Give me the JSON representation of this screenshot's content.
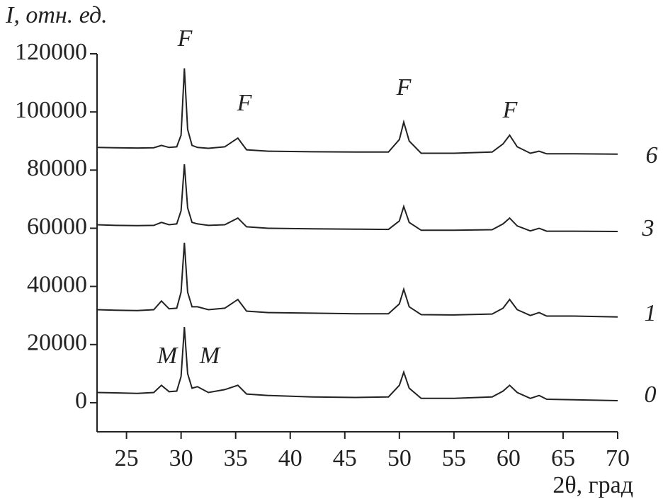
{
  "chart_data": {
    "type": "line",
    "y_label": "I, отн. ед.",
    "x_label": "2θ, град",
    "x": [
      22.3,
      24,
      26,
      27.5,
      28.2,
      28.9,
      29.6,
      30.0,
      30.3,
      30.6,
      31.0,
      31.5,
      32.5,
      34,
      35.2,
      36,
      38,
      42,
      46,
      49,
      50.0,
      50.4,
      50.9,
      52,
      55,
      58.5,
      59.5,
      60.1,
      60.8,
      62,
      62.8,
      63.5,
      66,
      70
    ],
    "series": [
      {
        "name": "0",
        "color": "#222222",
        "values": [
          3500,
          3400,
          3200,
          3500,
          6000,
          3800,
          4000,
          9000,
          26000,
          10000,
          5000,
          5500,
          3500,
          4500,
          6000,
          3000,
          2500,
          2000,
          1800,
          2000,
          6000,
          10500,
          5000,
          1500,
          1500,
          2000,
          4000,
          6000,
          3500,
          1500,
          2500,
          1200,
          1000,
          700
        ]
      },
      {
        "name": "1",
        "color": "#222222",
        "values": [
          32000,
          31800,
          31700,
          32000,
          35000,
          32300,
          32500,
          38000,
          55000,
          38000,
          33000,
          33000,
          32000,
          32500,
          35500,
          31500,
          31000,
          30800,
          30600,
          30600,
          34000,
          39000,
          33000,
          30300,
          30200,
          30500,
          32500,
          35500,
          32000,
          30000,
          31000,
          29800,
          29800,
          29500
        ]
      },
      {
        "name": "3",
        "color": "#222222",
        "values": [
          61200,
          61000,
          60900,
          61000,
          62000,
          61200,
          61500,
          66000,
          82000,
          67000,
          62000,
          61500,
          61000,
          61200,
          63500,
          60500,
          60000,
          59800,
          59700,
          59600,
          62500,
          67500,
          62000,
          59300,
          59300,
          59500,
          61500,
          63500,
          60800,
          59100,
          60000,
          59000,
          59000,
          58900
        ]
      },
      {
        "name": "6",
        "color": "#222222",
        "values": [
          87800,
          87700,
          87600,
          87700,
          88500,
          87800,
          88000,
          92000,
          115000,
          94000,
          88500,
          87800,
          87500,
          88000,
          91000,
          87000,
          86500,
          86300,
          86200,
          86200,
          90500,
          96500,
          90000,
          85800,
          85800,
          86200,
          89000,
          92000,
          88000,
          85800,
          86500,
          85600,
          85600,
          85500
        ]
      }
    ],
    "annotations": [
      "F",
      "F",
      "F",
      "F",
      "M",
      "M"
    ],
    "xlim": [
      22.3,
      70
    ],
    "xticks": [
      25,
      30,
      35,
      40,
      45,
      50,
      55,
      60,
      65,
      70
    ],
    "ylim": [
      -10000,
      120000
    ],
    "yticks": [
      0,
      20000,
      40000,
      60000,
      80000,
      100000,
      120000
    ]
  }
}
